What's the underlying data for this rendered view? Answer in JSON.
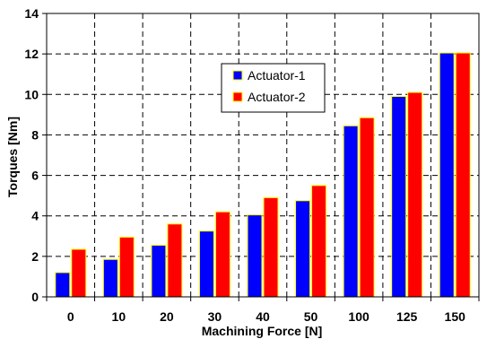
{
  "chart_data": {
    "type": "bar",
    "title": "",
    "xlabel": "Machining Force [N]",
    "ylabel": "Torques [Nm]",
    "categories": [
      "0",
      "10",
      "20",
      "30",
      "40",
      "50",
      "100",
      "125",
      "150"
    ],
    "series": [
      {
        "name": "Actuator-1",
        "color": "#0000ff",
        "values": [
          1.2,
          1.85,
          2.55,
          3.25,
          4.05,
          4.75,
          8.45,
          9.9,
          12.05
        ]
      },
      {
        "name": "Actuator-2",
        "color": "#ff0000",
        "values": [
          2.35,
          2.95,
          3.6,
          4.2,
          4.9,
          5.5,
          8.85,
          10.1,
          12.05
        ]
      }
    ],
    "ylim": [
      0,
      14
    ],
    "yticks": [
      0,
      2,
      4,
      6,
      8,
      10,
      12,
      14
    ],
    "grid": true,
    "grid_style": "dashed",
    "bar_outline_color": "#ffff00",
    "legend_position": "upper-middle"
  }
}
